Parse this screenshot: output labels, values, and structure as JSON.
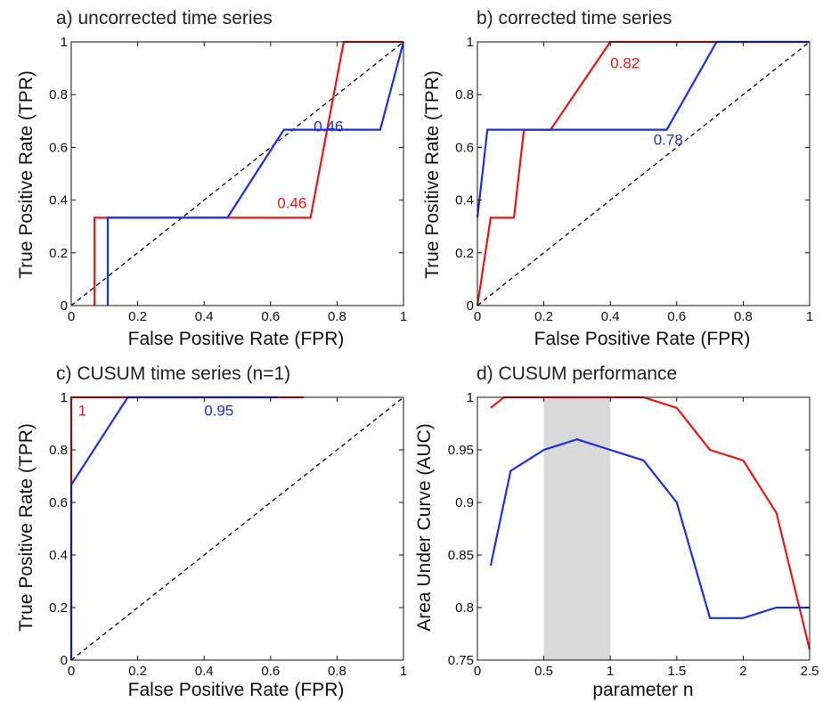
{
  "colors": {
    "red": "#e31a1c",
    "blue": "#1f2fe0",
    "diag": "#000000",
    "shade": "#d9d9d9"
  },
  "chart_data": [
    {
      "id": "a",
      "type": "line",
      "title": "a) uncorrected time series",
      "xlabel": "False Positive Rate (FPR)",
      "ylabel": "True Positive Rate (TPR)",
      "xlim": [
        0,
        1
      ],
      "ylim": [
        0,
        1
      ],
      "xticks": [
        "0",
        "0.2",
        "0.4",
        "0.6",
        "0.8",
        "1"
      ],
      "yticks": [
        "0",
        "0.2",
        "0.4",
        "0.6",
        "0.8",
        "1"
      ],
      "diagonal": true,
      "series": [
        {
          "color": "red",
          "points": [
            [
              0.07,
              0
            ],
            [
              0.07,
              0.333
            ],
            [
              0.1,
              0.333
            ],
            [
              0.47,
              0.333
            ],
            [
              0.72,
              0.333
            ],
            [
              0.82,
              1
            ],
            [
              1,
              1
            ]
          ]
        },
        {
          "color": "blue",
          "points": [
            [
              0.11,
              0
            ],
            [
              0.11,
              0.333
            ],
            [
              0.47,
              0.333
            ],
            [
              0.64,
              0.667
            ],
            [
              0.93,
              0.667
            ],
            [
              1,
              1
            ]
          ]
        }
      ],
      "annotations": [
        {
          "text": "0.46",
          "x": 0.73,
          "y": 0.66,
          "color": "blue"
        },
        {
          "text": "0.46",
          "x": 0.62,
          "y": 0.37,
          "color": "red"
        }
      ]
    },
    {
      "id": "b",
      "type": "line",
      "title": "b) corrected time series",
      "xlabel": "False Positive Rate (FPR)",
      "ylabel": "True Positive Rate (TPR)",
      "xlim": [
        0,
        1
      ],
      "ylim": [
        0,
        1
      ],
      "xticks": [
        "0",
        "0.2",
        "0.4",
        "0.6",
        "0.8",
        "1"
      ],
      "yticks": [
        "0",
        "0.2",
        "0.4",
        "0.6",
        "0.8",
        "1"
      ],
      "diagonal": true,
      "series": [
        {
          "color": "red",
          "points": [
            [
              0,
              0
            ],
            [
              0.04,
              0.333
            ],
            [
              0.11,
              0.333
            ],
            [
              0.14,
              0.667
            ],
            [
              0.22,
              0.667
            ],
            [
              0.4,
              1
            ],
            [
              1,
              1
            ]
          ]
        },
        {
          "color": "blue",
          "points": [
            [
              0,
              0.333
            ],
            [
              0.03,
              0.667
            ],
            [
              0.57,
              0.667
            ],
            [
              0.72,
              1
            ],
            [
              1,
              1
            ]
          ]
        }
      ],
      "annotations": [
        {
          "text": "0.82",
          "x": 0.4,
          "y": 0.9,
          "color": "red"
        },
        {
          "text": "0.78",
          "x": 0.53,
          "y": 0.61,
          "color": "blue"
        }
      ]
    },
    {
      "id": "c",
      "type": "line",
      "title": "c) CUSUM time series (n=1)",
      "xlabel": "False Positive Rate (FPR)",
      "ylabel": "True Positive Rate (TPR)",
      "xlim": [
        0,
        1
      ],
      "ylim": [
        0,
        1
      ],
      "xticks": [
        "0",
        "0.2",
        "0.4",
        "0.6",
        "0.8",
        "1"
      ],
      "yticks": [
        "0",
        "0.2",
        "0.4",
        "0.6",
        "0.8",
        "1"
      ],
      "diagonal": true,
      "series": [
        {
          "color": "red",
          "points": [
            [
              0,
              0
            ],
            [
              0,
              1
            ],
            [
              0.7,
              1
            ]
          ]
        },
        {
          "color": "blue",
          "points": [
            [
              0,
              0
            ],
            [
              0,
              0.667
            ],
            [
              0.17,
              1
            ],
            [
              0.62,
              1
            ]
          ]
        }
      ],
      "annotations": [
        {
          "text": "1",
          "x": 0.02,
          "y": 0.93,
          "color": "red"
        },
        {
          "text": "0.95",
          "x": 0.4,
          "y": 0.93,
          "color": "blue"
        }
      ]
    },
    {
      "id": "d",
      "type": "line",
      "title": "d) CUSUM performance",
      "xlabel": "parameter n",
      "ylabel": "Area Under Curve (AUC)",
      "xlim": [
        0,
        2.5
      ],
      "ylim": [
        0.75,
        1
      ],
      "xticks": [
        "0",
        "0.5",
        "1",
        "1.5",
        "2",
        "2.5"
      ],
      "yticks": [
        "0.75",
        "0.8",
        "0.85",
        "0.9",
        "0.95",
        "1"
      ],
      "shaded_range": [
        0.5,
        1
      ],
      "series": [
        {
          "color": "red",
          "x": [
            0.1,
            0.2,
            0.5,
            0.75,
            1.0,
            1.25,
            1.5,
            1.75,
            2.0,
            2.25,
            2.5
          ],
          "y": [
            0.99,
            1.0,
            1.0,
            1.0,
            1.0,
            1.0,
            0.99,
            0.95,
            0.94,
            0.89,
            0.76
          ]
        },
        {
          "color": "blue",
          "x": [
            0.1,
            0.25,
            0.5,
            0.75,
            1.0,
            1.25,
            1.5,
            1.75,
            2.0,
            2.25,
            2.5
          ],
          "y": [
            0.84,
            0.93,
            0.95,
            0.96,
            0.95,
            0.94,
            0.9,
            0.79,
            0.79,
            0.8,
            0.8
          ]
        }
      ],
      "annotations": []
    }
  ]
}
